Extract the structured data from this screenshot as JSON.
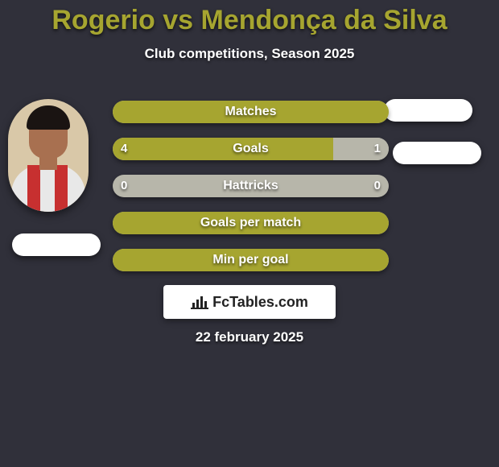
{
  "colors": {
    "background": "#30303a",
    "title": "#a6a530",
    "subtitle": "#ffffff",
    "white": "#ffffff",
    "bar_primary": "#a6a530",
    "bar_secondary": "#b7b6aa",
    "bar_text": "#ffffff",
    "avatar_bg": "#d9c8a8",
    "avatar_skin": "#a87050",
    "avatar_hair": "#1a1412",
    "avatar_shirt": "#e8e8e8",
    "avatar_stripe": "#c73030",
    "logo_bg": "#ffffff",
    "logo_text": "#222222",
    "date_text": "#ffffff"
  },
  "title": "Rogerio vs Mendonça da Silva",
  "subtitle": "Club competitions, Season 2025",
  "date": "22 february 2025",
  "logo": "FcTables.com",
  "bars": [
    {
      "label": "Matches",
      "left_val": "",
      "right_val": "",
      "left_pct": 100,
      "right_pct": 0
    },
    {
      "label": "Goals",
      "left_val": "4",
      "right_val": "1",
      "left_pct": 80,
      "right_pct": 20
    },
    {
      "label": "Hattricks",
      "left_val": "0",
      "right_val": "0",
      "left_pct": 0,
      "right_pct": 0
    },
    {
      "label": "Goals per match",
      "left_val": "",
      "right_val": "",
      "left_pct": 100,
      "right_pct": 0
    },
    {
      "label": "Min per goal",
      "left_val": "",
      "right_val": "",
      "left_pct": 100,
      "right_pct": 0
    }
  ]
}
